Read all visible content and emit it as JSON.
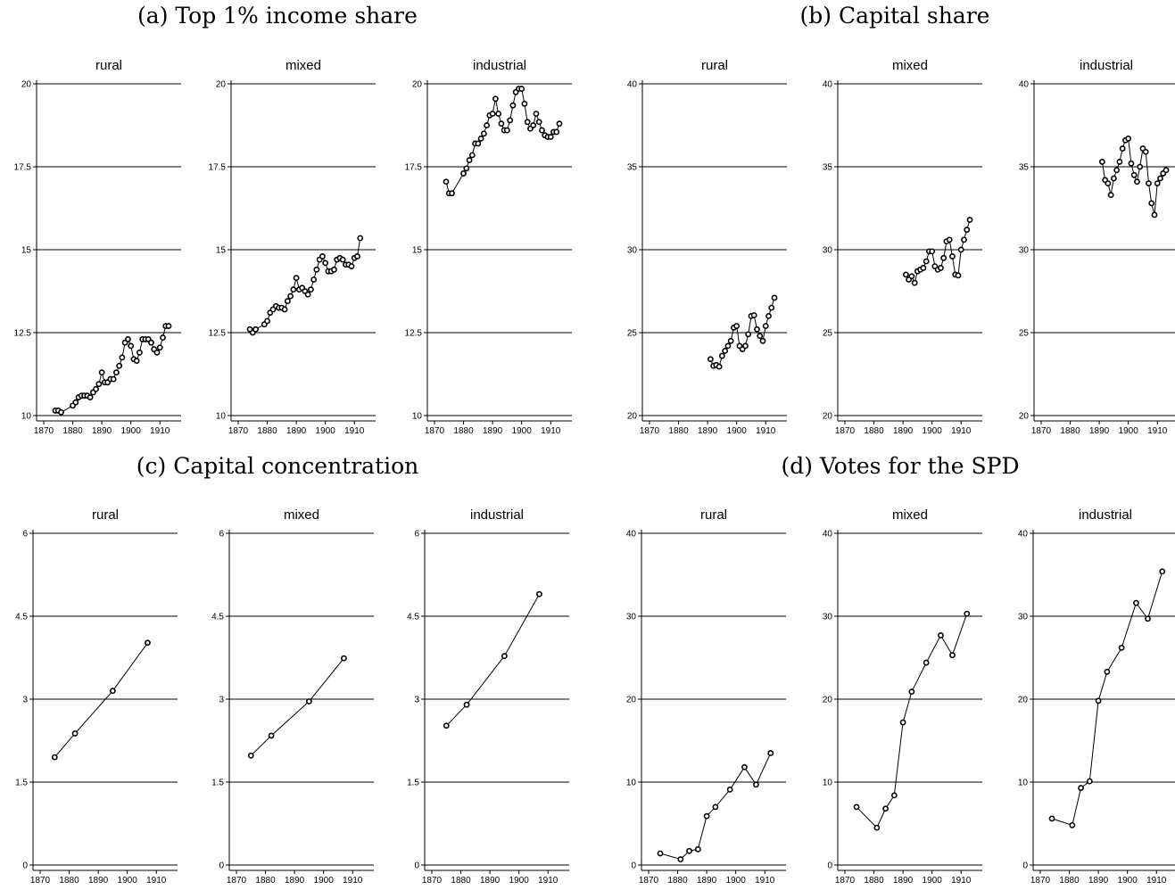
{
  "chart_data": [
    {
      "panel": "(a) Top 1% income share",
      "type": "line",
      "ylim": [
        10,
        20
      ],
      "yticks": [
        "10",
        "12.5",
        "15",
        "17.5",
        "20"
      ],
      "xlim": [
        1870,
        1913
      ],
      "xticks": [
        "1870",
        "1880",
        "1890",
        "1900",
        "1910"
      ],
      "grid": true,
      "subplots": [
        {
          "label": "rural",
          "x": [
            1874,
            1875,
            1876,
            1880,
            1881,
            1882,
            1883,
            1884,
            1885,
            1886,
            1887,
            1888,
            1889,
            1890,
            1891,
            1892,
            1893,
            1894,
            1895,
            1896,
            1897,
            1898,
            1899,
            1900,
            1901,
            1902,
            1903,
            1904,
            1905,
            1906,
            1907,
            1908,
            1909,
            1910,
            1911,
            1912,
            1913
          ],
          "y": [
            10.15,
            10.15,
            10.1,
            10.3,
            10.4,
            10.55,
            10.6,
            10.6,
            10.6,
            10.55,
            10.7,
            10.8,
            10.95,
            11.3,
            11.0,
            11.0,
            11.1,
            11.1,
            11.3,
            11.5,
            11.75,
            12.2,
            12.3,
            12.1,
            11.7,
            11.65,
            11.9,
            12.3,
            12.3,
            12.3,
            12.2,
            12.0,
            11.9,
            12.05,
            12.35,
            12.7,
            12.7
          ]
        },
        {
          "label": "mixed",
          "x": [
            1874,
            1875,
            1876,
            1879,
            1880,
            1881,
            1882,
            1883,
            1884,
            1885,
            1886,
            1887,
            1888,
            1889,
            1890,
            1891,
            1892,
            1893,
            1894,
            1895,
            1896,
            1897,
            1898,
            1899,
            1900,
            1901,
            1902,
            1903,
            1904,
            1905,
            1906,
            1907,
            1908,
            1909,
            1910,
            1911,
            1912
          ],
          "y": [
            12.6,
            12.5,
            12.6,
            12.75,
            12.85,
            13.1,
            13.2,
            13.3,
            13.25,
            13.25,
            13.2,
            13.45,
            13.6,
            13.8,
            14.15,
            13.8,
            13.85,
            13.75,
            13.65,
            13.8,
            14.1,
            14.4,
            14.7,
            14.8,
            14.6,
            14.35,
            14.35,
            14.4,
            14.7,
            14.75,
            14.7,
            14.55,
            14.55,
            14.5,
            14.75,
            14.8,
            15.35
          ]
        },
        {
          "label": "industrial",
          "x": [
            1874,
            1875,
            1876,
            1880,
            1881,
            1882,
            1883,
            1884,
            1885,
            1886,
            1887,
            1888,
            1889,
            1890,
            1891,
            1892,
            1893,
            1894,
            1895,
            1896,
            1897,
            1898,
            1899,
            1900,
            1901,
            1902,
            1903,
            1904,
            1905,
            1906,
            1907,
            1908,
            1909,
            1910,
            1911,
            1912,
            1913
          ],
          "y": [
            17.05,
            16.7,
            16.7,
            17.3,
            17.45,
            17.7,
            17.85,
            18.2,
            18.2,
            18.35,
            18.5,
            18.75,
            19.05,
            19.1,
            19.55,
            19.1,
            18.8,
            18.6,
            18.6,
            18.9,
            19.35,
            19.75,
            19.85,
            19.85,
            19.4,
            18.85,
            18.65,
            18.75,
            19.1,
            18.85,
            18.6,
            18.45,
            18.4,
            18.4,
            18.55,
            18.55,
            18.8
          ]
        }
      ]
    },
    {
      "panel": "(b) Capital share",
      "type": "line",
      "ylim": [
        20,
        40
      ],
      "yticks": [
        "20",
        "25",
        "30",
        "35",
        "40"
      ],
      "xlim": [
        1870,
        1913
      ],
      "xticks": [
        "1870",
        "1880",
        "1890",
        "1900",
        "1910"
      ],
      "grid": true,
      "subplots": [
        {
          "label": "rural",
          "x": [
            1891,
            1892,
            1893,
            1894,
            1895,
            1896,
            1897,
            1898,
            1899,
            1900,
            1901,
            1902,
            1903,
            1904,
            1905,
            1906,
            1907,
            1908,
            1909,
            1910,
            1911,
            1912,
            1913
          ],
          "y": [
            23.4,
            23.0,
            23.05,
            22.95,
            23.6,
            23.9,
            24.2,
            24.5,
            25.3,
            25.4,
            24.2,
            24.0,
            24.2,
            24.9,
            26.0,
            26.05,
            25.2,
            24.8,
            24.5,
            25.4,
            26.0,
            26.5,
            27.1
          ]
        },
        {
          "label": "mixed",
          "x": [
            1891,
            1892,
            1893,
            1894,
            1895,
            1896,
            1897,
            1898,
            1899,
            1900,
            1901,
            1902,
            1903,
            1904,
            1905,
            1906,
            1907,
            1908,
            1909,
            1910,
            1911,
            1912,
            1913
          ],
          "y": [
            28.5,
            28.2,
            28.4,
            28.0,
            28.7,
            28.8,
            28.9,
            29.3,
            29.9,
            29.9,
            29.0,
            28.8,
            28.9,
            29.5,
            30.5,
            30.6,
            29.6,
            28.5,
            28.45,
            30.0,
            30.6,
            31.2,
            31.8
          ]
        },
        {
          "label": "industrial",
          "x": [
            1891,
            1892,
            1893,
            1894,
            1895,
            1896,
            1897,
            1898,
            1899,
            1900,
            1901,
            1902,
            1903,
            1904,
            1905,
            1906,
            1907,
            1908,
            1909,
            1910,
            1911,
            1912,
            1913
          ],
          "y": [
            35.3,
            34.2,
            34.0,
            33.3,
            34.3,
            34.8,
            35.3,
            36.1,
            36.6,
            36.7,
            35.2,
            34.5,
            34.1,
            35.0,
            36.1,
            35.9,
            34.0,
            32.8,
            32.1,
            34.0,
            34.3,
            34.6,
            34.8
          ]
        }
      ]
    },
    {
      "panel": "(c) Capital concentration",
      "type": "line",
      "ylim": [
        0,
        6
      ],
      "yticks": [
        "0",
        "1.5",
        "3",
        "4.5",
        "6"
      ],
      "xlim": [
        1870,
        1913
      ],
      "xticks": [
        "1870",
        "1880",
        "1890",
        "1900",
        "1910"
      ],
      "grid": true,
      "subplots": [
        {
          "label": "rural",
          "x": [
            1875,
            1882,
            1895,
            1907
          ],
          "y": [
            1.95,
            2.38,
            3.15,
            4.02
          ]
        },
        {
          "label": "mixed",
          "x": [
            1875,
            1882,
            1895,
            1907
          ],
          "y": [
            1.98,
            2.34,
            2.96,
            3.74
          ]
        },
        {
          "label": "industrial",
          "x": [
            1875,
            1882,
            1895,
            1907
          ],
          "y": [
            2.52,
            2.9,
            3.78,
            4.9
          ]
        }
      ]
    },
    {
      "panel": "(d) Votes for the SPD",
      "type": "line",
      "ylim": [
        0,
        40
      ],
      "yticks": [
        "0",
        "10",
        "20",
        "30",
        "40"
      ],
      "xlim": [
        1870,
        1913
      ],
      "xticks": [
        "1870",
        "1880",
        "1890",
        "1900",
        "1910"
      ],
      "grid": true,
      "subplots": [
        {
          "label": "rural",
          "x": [
            1874,
            1881,
            1884,
            1887,
            1890,
            1893,
            1898,
            1903,
            1907,
            1912
          ],
          "y": [
            1.4,
            0.7,
            1.7,
            1.9,
            5.9,
            7.0,
            9.1,
            11.8,
            9.7,
            13.5
          ]
        },
        {
          "label": "mixed",
          "x": [
            1874,
            1881,
            1884,
            1887,
            1890,
            1893,
            1898,
            1903,
            1907,
            1912
          ],
          "y": [
            7.0,
            4.5,
            6.8,
            8.4,
            17.2,
            20.9,
            24.4,
            27.7,
            25.3,
            30.3
          ]
        },
        {
          "label": "industrial",
          "x": [
            1874,
            1881,
            1884,
            1887,
            1890,
            1893,
            1898,
            1903,
            1907,
            1912
          ],
          "y": [
            5.6,
            4.8,
            9.3,
            10.1,
            19.8,
            23.3,
            26.2,
            31.6,
            29.7,
            35.4
          ]
        }
      ]
    }
  ]
}
